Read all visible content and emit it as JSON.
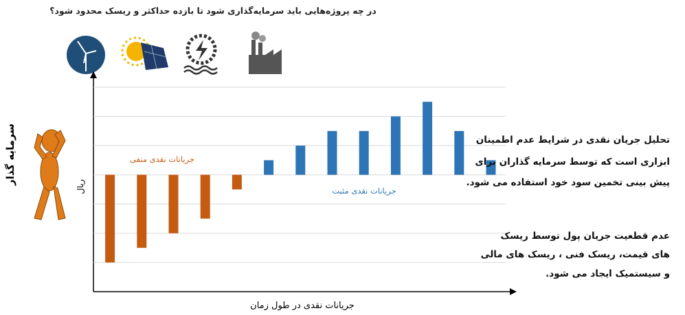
{
  "chart_data": {
    "type": "bar",
    "title": "در چه پروژه‌هایی باید سرمایه‌گذاری شود تا بازده حداکثر و ریسک محدود شود؟",
    "x_label": "جریانات نقدی در طول زمان",
    "y_label": "ریال",
    "actor_label": "سرمایه گذار",
    "annotations": [
      "جریانات نقدی منفی",
      "جریانات نقدی مثبت"
    ],
    "categories": [
      null,
      null,
      null,
      null,
      null,
      null,
      null,
      null,
      null,
      null,
      null,
      null,
      null
    ],
    "values": [
      -3,
      -2.5,
      -2,
      -1.5,
      -0.5,
      0.5,
      1,
      1.5,
      1.5,
      2,
      2.5,
      1.5,
      0.5
    ],
    "colors": [
      "#c55a11",
      "#c55a11",
      "#c55a11",
      "#c55a11",
      "#c55a11",
      "#2e75b6",
      "#2e75b6",
      "#2e75b6",
      "#2e75b6",
      "#2e75b6",
      "#2e75b6",
      "#2e75b6",
      "#2e75b6"
    ],
    "ylim": [
      -4,
      3.4
    ],
    "grid_values": [
      -3,
      -2,
      -1,
      0,
      1,
      2,
      3
    ],
    "grid": true
  },
  "notes": [
    [
      "تحلیل جریان نقدی در شرایط عدم اطمینان",
      "ابزاری است که توسط سرمایه گذاران برای",
      "پیش بینی تخمین سود خود استفاده می شود."
    ],
    [
      "عدم قطعیت جریان پول توسط ریسک",
      "های قیمت، ریسک فنی ، ریسک های مالی",
      "و سیستمیک ایجاد می شود."
    ]
  ]
}
